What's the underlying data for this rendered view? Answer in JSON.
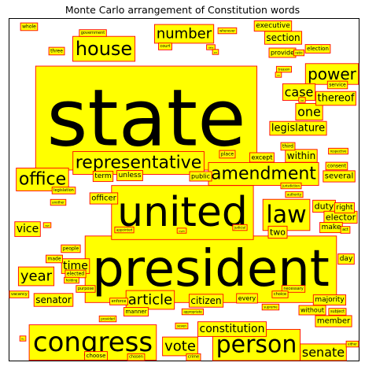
{
  "chart_data": {
    "type": "word-cloud",
    "title": "Monte Carlo arrangement of Constitution words",
    "box_fill": "#ffff00",
    "box_stroke": "#ff0000",
    "text_color": "#000000",
    "axes_visible": false,
    "words": [
      {
        "text": "state",
        "size": 1.0
      },
      {
        "text": "president",
        "size": 0.68
      },
      {
        "text": "united",
        "size": 0.52
      },
      {
        "text": "congress",
        "size": 0.38
      },
      {
        "text": "law",
        "size": 0.3
      },
      {
        "text": "person",
        "size": 0.3
      },
      {
        "text": "house",
        "size": 0.25
      },
      {
        "text": "amendment",
        "size": 0.24
      },
      {
        "text": "representative",
        "size": 0.22
      },
      {
        "text": "office",
        "size": 0.22
      },
      {
        "text": "year",
        "size": 0.2
      },
      {
        "text": "power",
        "size": 0.2
      },
      {
        "text": "number",
        "size": 0.18
      },
      {
        "text": "article",
        "size": 0.18
      },
      {
        "text": "vote",
        "size": 0.18
      },
      {
        "text": "senate",
        "size": 0.17
      },
      {
        "text": "case",
        "size": 0.17
      },
      {
        "text": "constitution",
        "size": 0.15
      },
      {
        "text": "one",
        "size": 0.14
      },
      {
        "text": "time",
        "size": 0.14
      },
      {
        "text": "vice",
        "size": 0.14
      },
      {
        "text": "thereof",
        "size": 0.13
      },
      {
        "text": "legislature",
        "size": 0.13
      },
      {
        "text": "section",
        "size": 0.13
      },
      {
        "text": "citizen",
        "size": 0.12
      },
      {
        "text": "within",
        "size": 0.11
      },
      {
        "text": "senator",
        "size": 0.11
      },
      {
        "text": "two",
        "size": 0.1
      },
      {
        "text": "duty",
        "size": 0.1
      },
      {
        "text": "several",
        "size": 0.1
      },
      {
        "text": "elector",
        "size": 0.1
      },
      {
        "text": "officer",
        "size": 0.1
      },
      {
        "text": "member",
        "size": 0.1
      },
      {
        "text": "majority",
        "size": 0.09
      },
      {
        "text": "term",
        "size": 0.09
      },
      {
        "text": "executive",
        "size": 0.09
      },
      {
        "text": "unless",
        "size": 0.09
      },
      {
        "text": "day",
        "size": 0.09
      },
      {
        "text": "make",
        "size": 0.09
      },
      {
        "text": "right",
        "size": 0.09
      },
      {
        "text": "public",
        "size": 0.08
      },
      {
        "text": "except",
        "size": 0.08
      },
      {
        "text": "without",
        "size": 0.08
      },
      {
        "text": "provide",
        "size": 0.08
      },
      {
        "text": "every",
        "size": 0.08
      },
      {
        "text": "manner",
        "size": 0.07
      },
      {
        "text": "choose",
        "size": 0.07
      },
      {
        "text": "election",
        "size": 0.07
      },
      {
        "text": "third",
        "size": 0.06
      },
      {
        "text": "consent",
        "size": 0.06
      },
      {
        "text": "people",
        "size": 0.06
      },
      {
        "text": "made",
        "size": 0.06
      },
      {
        "text": "service",
        "size": 0.06
      },
      {
        "text": "elected",
        "size": 0.06
      },
      {
        "text": "place",
        "size": 0.06
      },
      {
        "text": "whole",
        "size": 0.06
      },
      {
        "text": "three",
        "size": 0.06
      },
      {
        "text": "court",
        "size": 0.05
      },
      {
        "text": "government",
        "size": 0.05
      },
      {
        "text": "legislation",
        "size": 0.05
      },
      {
        "text": "enforce",
        "size": 0.05
      },
      {
        "text": "subject",
        "size": 0.05
      },
      {
        "text": "crime",
        "size": 0.05
      },
      {
        "text": "chosen",
        "size": 0.05
      },
      {
        "text": "act",
        "size": 0.05
      },
      {
        "text": "purpose",
        "size": 0.05
      },
      {
        "text": "necessary",
        "size": 0.05
      },
      {
        "text": "choice",
        "size": 0.05
      },
      {
        "text": "vacancy",
        "size": 0.05
      },
      {
        "text": "holding",
        "size": 0.04
      },
      {
        "text": "jurisdiction",
        "size": 0.04
      },
      {
        "text": "authority",
        "size": 0.04
      },
      {
        "text": "appropriate",
        "size": 0.04
      },
      {
        "text": "appointed",
        "size": 0.04
      },
      {
        "text": "judicial",
        "size": 0.04
      },
      {
        "text": "provided",
        "size": 0.04
      },
      {
        "text": "whenever",
        "size": 0.04
      },
      {
        "text": "respective",
        "size": 0.04
      },
      {
        "text": "supreme",
        "size": 0.04
      },
      {
        "text": "treason",
        "size": 0.04
      },
      {
        "text": "ratio",
        "size": 0.04
      },
      {
        "text": "another",
        "size": 0.04
      },
      {
        "text": "either",
        "size": 0.04
      },
      {
        "text": "seven",
        "size": 0.04
      },
      {
        "text": "age",
        "size": 0.03
      },
      {
        "text": "eight",
        "size": 0.03
      },
      {
        "text": "date",
        "size": 0.03
      },
      {
        "text": "list",
        "size": 0.03
      },
      {
        "text": "fix",
        "size": 0.03
      },
      {
        "text": "pa",
        "size": 0.03
      },
      {
        "text": "on",
        "size": 0.03
      }
    ]
  }
}
